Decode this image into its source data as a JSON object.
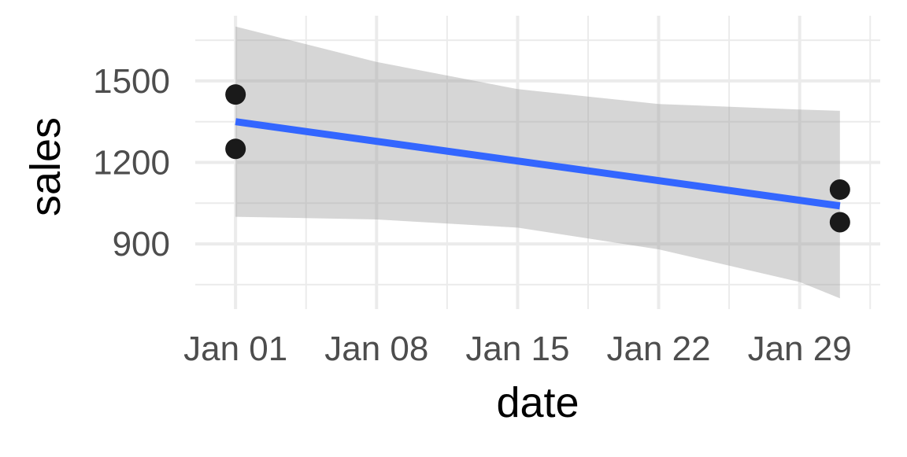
{
  "chart_data": {
    "type": "scatter",
    "title": "",
    "xlabel": "date",
    "ylabel": "sales",
    "x_tick_labels": [
      "Jan 01",
      "Jan 08",
      "Jan 15",
      "Jan 22",
      "Jan 29"
    ],
    "x_tick_values": [
      "2023-01-01",
      "2023-01-08",
      "2023-01-15",
      "2023-01-22",
      "2023-01-29"
    ],
    "y_tick_values": [
      900,
      1200,
      1500
    ],
    "xlim": [
      "2022-12-30",
      "2023-02-02"
    ],
    "ylim": [
      660,
      1740
    ],
    "grid": true,
    "legend": "none",
    "points": [
      {
        "x": "2023-01-01",
        "y": 1450
      },
      {
        "x": "2023-01-01",
        "y": 1250
      },
      {
        "x": "2023-01-31",
        "y": 1100
      },
      {
        "x": "2023-01-31",
        "y": 980
      }
    ],
    "trend_line": {
      "method": "linear regression",
      "x": [
        "2023-01-01",
        "2023-01-31"
      ],
      "y": [
        1350,
        1040
      ]
    },
    "confidence_band": {
      "x": [
        "2023-01-01",
        "2023-01-08",
        "2023-01-15",
        "2023-01-22",
        "2023-01-29",
        "2023-01-31"
      ],
      "lower": [
        1000,
        990,
        960,
        880,
        760,
        700
      ],
      "upper": [
        1700,
        1570,
        1470,
        1415,
        1395,
        1390
      ]
    },
    "colors": {
      "points": "#1a1a1a",
      "trend_line": "#3366ff",
      "band": "#999999",
      "grid": "#ebebeb"
    }
  }
}
